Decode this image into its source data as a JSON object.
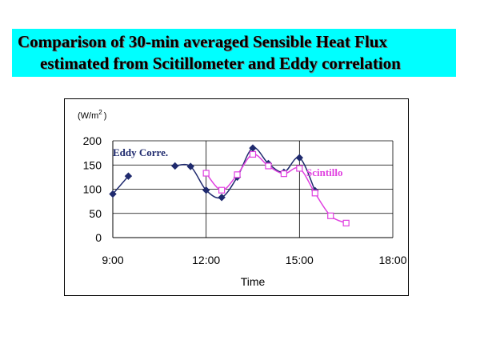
{
  "title": {
    "line1": "Comparison of 30-min averaged Sensible Heat Flux",
    "line2": "estimated from  Scitillometer  and Eddy correlation"
  },
  "colors": {
    "title_background": "#00ffff",
    "eddy": "#1f2a6e",
    "scintillo": "#e040e0"
  },
  "chart_data": {
    "type": "line",
    "unit_label": "(W/m",
    "unit_superscript": "2",
    "unit_close": ")",
    "xlabel": "Time",
    "x_tick_labels": [
      "9:00",
      "12:00",
      "15:00",
      "18:00"
    ],
    "x_ticks_hours": [
      9,
      12,
      15,
      18
    ],
    "xlim_hours": [
      9,
      18
    ],
    "y_tick_labels": [
      "200",
      "150",
      "100",
      "50",
      "0"
    ],
    "y_ticks": [
      200,
      150,
      100,
      50,
      0
    ],
    "ylim": [
      0,
      200
    ],
    "grid": "vertical and horizontal major gridlines",
    "series": [
      {
        "name": "Eddy Corre.",
        "marker": "filled-diamond",
        "color": "#1f2a6e",
        "segments": [
          {
            "x": [
              "9:00",
              "9:30"
            ],
            "y": [
              90,
              127
            ]
          },
          {
            "x": [
              "11:00",
              "11:30",
              "12:00",
              "12:30",
              "13:00",
              "13:30",
              "14:00",
              "14:30",
              "15:00",
              "15:30"
            ],
            "y": [
              148,
              147,
              98,
              83,
              125,
              185,
              153,
              135,
              165,
              97
            ]
          }
        ]
      },
      {
        "name": "Scintillo",
        "marker": "open-square",
        "color": "#e040e0",
        "segments": [
          {
            "x": [
              "12:00",
              "12:30",
              "13:00",
              "13:30",
              "14:00",
              "14:30",
              "15:00",
              "15:30",
              "16:00",
              "16:30"
            ],
            "y": [
              133,
              98,
              130,
              172,
              148,
              132,
              143,
              92,
              45,
              30
            ]
          }
        ]
      }
    ]
  }
}
